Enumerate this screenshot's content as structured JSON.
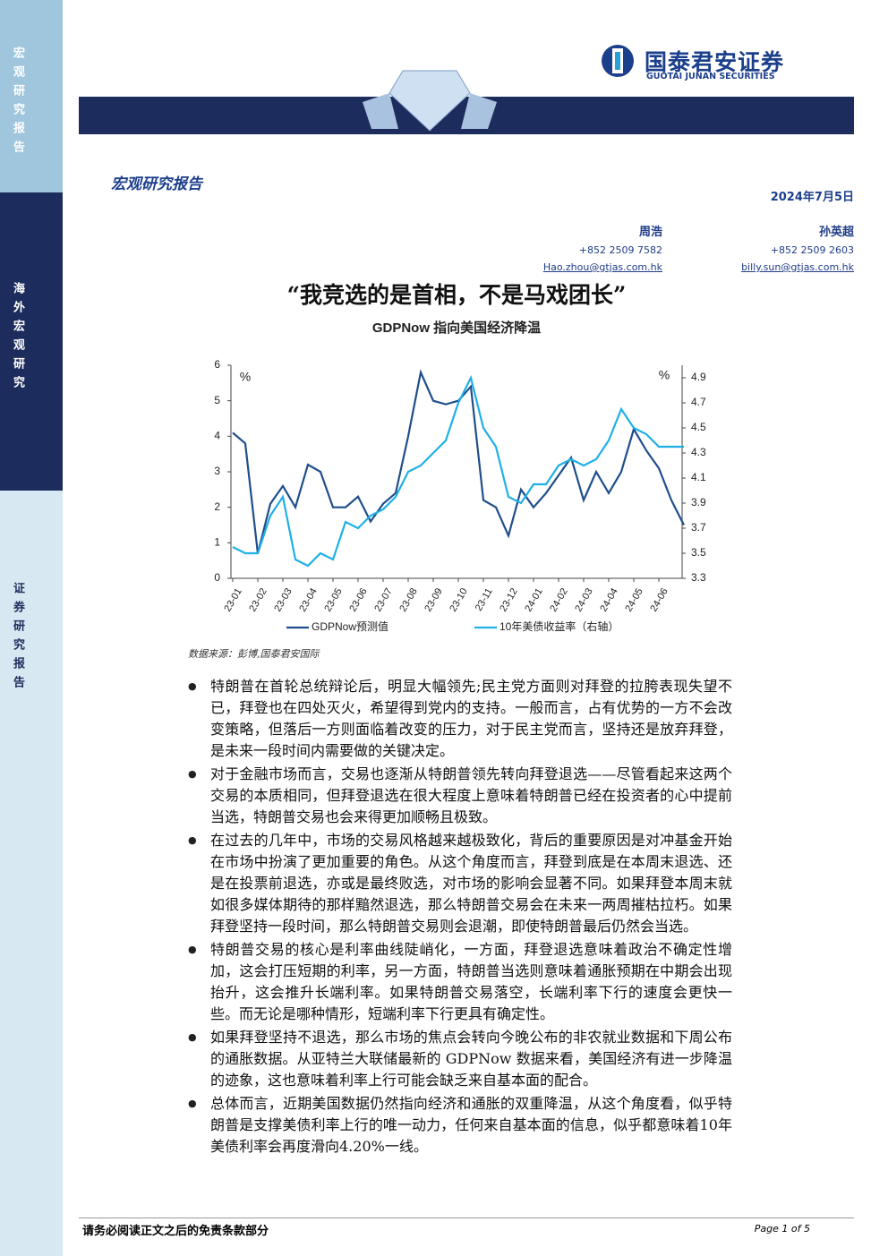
{
  "sidebar": {
    "top": "宏观研究报告",
    "middle": "海外宏观研究",
    "bottom": "证券研究报告"
  },
  "header": {
    "logo_cn": "国泰君安证券",
    "logo_en": "GUOTAI JUNAN SECURITIES",
    "section": "宏观研究报告",
    "date": "2024年7月5日"
  },
  "authors": [
    {
      "name": "周浩",
      "phone": "+852 2509 7582",
      "email": "Hao.zhou@gtjas.com.hk"
    },
    {
      "name": "孙英超",
      "phone": "+852 2509 2603",
      "email": "billy.sun@gtjas.com.hk"
    }
  ],
  "title": "“我竞选的是首相，不是马戏团长”",
  "chart_data": {
    "type": "line",
    "title": "GDPNow 指向美国经济降温",
    "categories": [
      "23-01",
      null,
      "23-02",
      null,
      "23-03",
      null,
      "23-04",
      null,
      "23-05",
      null,
      "23-06",
      null,
      "23-07",
      null,
      "23-08",
      null,
      "23-09",
      null,
      "23-10",
      null,
      "23-11",
      null,
      "23-12",
      null,
      "24-01",
      null,
      "24-02",
      null,
      "24-03",
      null,
      "24-04",
      null,
      "24-05",
      null,
      "24-06",
      null,
      null
    ],
    "series": [
      {
        "name": "GDPNow预测值",
        "color": "#1f4e8c",
        "values": [
          4.1,
          3.8,
          0.7,
          2.1,
          2.6,
          2.0,
          3.2,
          3.0,
          2.0,
          2.0,
          2.3,
          1.6,
          2.1,
          2.4,
          4.0,
          5.8,
          5.0,
          4.9,
          5.0,
          5.4,
          2.2,
          2.0,
          1.2,
          2.5,
          2.0,
          2.4,
          2.9,
          3.4,
          2.2,
          3.0,
          2.4,
          3.0,
          4.2,
          3.6,
          3.1,
          2.2,
          1.5
        ]
      },
      {
        "name": "10年美债收益率（右轴）",
        "color": "#1fb0e6",
        "axis": "y2",
        "values": [
          3.55,
          3.5,
          3.5,
          3.8,
          3.95,
          3.45,
          3.4,
          3.5,
          3.45,
          3.75,
          3.7,
          3.8,
          3.85,
          3.95,
          4.15,
          4.2,
          4.3,
          4.4,
          4.7,
          4.9,
          4.5,
          4.35,
          3.95,
          3.9,
          4.05,
          4.05,
          4.2,
          4.25,
          4.2,
          4.25,
          4.4,
          4.65,
          4.5,
          4.45,
          4.35,
          4.35,
          4.35
        ]
      }
    ],
    "y_label": "%",
    "y2_label": "%",
    "ylim": [
      0,
      6
    ],
    "yticks": [
      0,
      1,
      2,
      3,
      4,
      5,
      6
    ],
    "y2lim": [
      3.3,
      5.0
    ],
    "y2ticks": [
      3.3,
      3.5,
      3.7,
      3.9,
      4.1,
      4.3,
      4.5,
      4.7,
      4.9
    ],
    "grid": false,
    "legend": "bottom"
  },
  "source": "数据来源：彭博,国泰君安国际",
  "bullets": [
    "特朗普在首轮总统辩论后，明显大幅领先;民主党方面则对拜登的拉胯表现失望不已，拜登也在四处灭火，希望得到党内的支持。一般而言，占有优势的一方不会改变策略，但落后一方则面临着改变的压力，对于民主党而言，坚持还是放弃拜登，是未来一段时间内需要做的关键决定。",
    "对于金融市场而言，交易也逐渐从特朗普领先转向拜登退选——尽管看起来这两个交易的本质相同，但拜登退选在很大程度上意味着特朗普已经在投资者的心中提前当选，特朗普交易也会来得更加顺畅且极致。",
    "在过去的几年中，市场的交易风格越来越极致化，背后的重要原因是对冲基金开始在市场中扮演了更加重要的角色。从这个角度而言，拜登到底是在本周末退选、还是在投票前退选，亦或是最终败选，对市场的影响会显著不同。如果拜登本周末就如很多媒体期待的那样黯然退选，那么特朗普交易会在未来一两周摧枯拉朽。如果拜登坚持一段时间，那么特朗普交易则会退潮，即使特朗普最后仍然会当选。",
    "特朗普交易的核心是利率曲线陡峭化，一方面，拜登退选意味着政治不确定性增加，这会打压短期的利率，另一方面，特朗普当选则意味着通胀预期在中期会出现抬升，这会推升长端利率。如果特朗普交易落空，长端利率下行的速度会更快一些。而无论是哪种情形，短端利率下行更具有确定性。",
    "如果拜登坚持不退选，那么市场的焦点会转向今晚公布的非农就业数据和下周公布的通胀数据。从亚特兰大联储最新的 GDPNow 数据来看，美国经济有进一步降温的迹象，这也意味着利率上行可能会缺乏来自基本面的配合。",
    "总体而言，近期美国数据仍然指向经济和通胀的双重降温，从这个角度看，似乎特朗普是支撑美债利率上行的唯一动力，任何来自基本面的信息，似乎都意味着10年美债利率会再度滑向4.20%一线。"
  ],
  "footer": {
    "disclaimer": "请务必阅读正文之后的免责条款部分",
    "page": "Page 1 of 5"
  }
}
